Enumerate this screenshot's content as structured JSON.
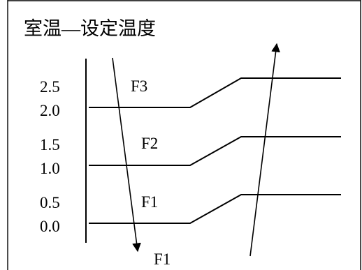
{
  "title": "室温—设定温度",
  "y_ticks": [
    "2.5",
    "2.0",
    "1.5",
    "1.0",
    "0.5",
    "0.0"
  ],
  "regions": {
    "f3": "F3",
    "f2": "F2",
    "f1": "F1",
    "bottom": "F1"
  },
  "colors": {
    "ink": "#000000",
    "background": "#ffffff"
  }
}
